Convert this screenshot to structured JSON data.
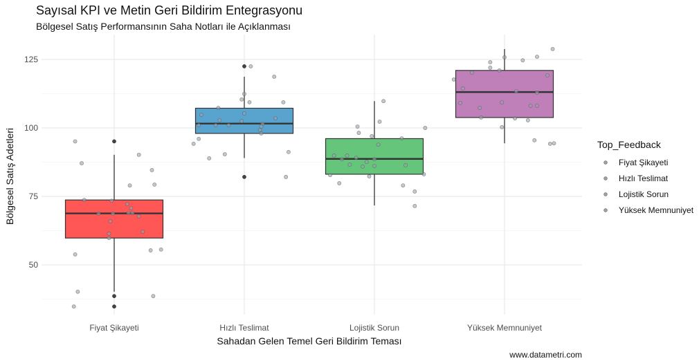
{
  "chart_data": {
    "type": "boxplot",
    "title": "Sayısal KPI ve Metin Geri Bildirim Entegrasyonu",
    "subtitle": "Bölgesel Satış Performansının Saha Notları ile Açıklanması",
    "xlabel": "Sahadan Gelen Temel Geri Bildirim Teması",
    "ylabel": "Bölgesel Satış Adetleri",
    "caption": "www.datametri.com",
    "ylim": [
      30,
      133
    ],
    "yticks": [
      50,
      75,
      100,
      125
    ],
    "grid": true,
    "categories": [
      "Fiyat Şikayeti",
      "Hızlı Teslimat",
      "Lojistik Sorun",
      "Yüksek Memnuniyet"
    ],
    "colors": [
      "#FF4D4D",
      "#4F9FCC",
      "#5CC274",
      "#BC79B6"
    ],
    "point_color": "#9AA3AD",
    "legend": {
      "title": "Top_Feedback",
      "placement": "right",
      "items": [
        "Fiyat Şikayeti",
        "Hızlı Teslimat",
        "Lojistik Sorun",
        "Yüksek Memnuniyet"
      ]
    },
    "boxes": [
      {
        "q1": 59.8,
        "median": 68.8,
        "q3": 73.7,
        "whisker_low": 40.2,
        "whisker_high": 90.2,
        "outliers": [
          95.1,
          38.6,
          34.8
        ]
      },
      {
        "q1": 98.0,
        "median": 101.6,
        "q3": 107.2,
        "whisker_low": 89.0,
        "whisker_high": 118.7,
        "outliers": [
          122.5,
          82.1
        ]
      },
      {
        "q1": 83.1,
        "median": 88.7,
        "q3": 96.1,
        "whisker_low": 71.7,
        "whisker_high": 109.8,
        "outliers": []
      },
      {
        "q1": 103.8,
        "median": 113.1,
        "q3": 121.0,
        "whisker_low": 94.4,
        "whisker_high": 128.8,
        "outliers": []
      }
    ],
    "points": [
      [
        [
          -0.3,
          95.1
        ],
        [
          0.19,
          90.2
        ],
        [
          -0.25,
          87.1
        ],
        [
          0.29,
          84.6
        ],
        [
          0.12,
          79.0
        ],
        [
          0.31,
          79.3
        ],
        [
          -0.23,
          73.7
        ],
        [
          -0.02,
          73.4
        ],
        [
          0.1,
          72.2
        ],
        [
          0.13,
          70.7
        ],
        [
          -0.12,
          68.7
        ],
        [
          -0.01,
          68.7
        ],
        [
          0.11,
          68.9
        ],
        [
          0.14,
          68.9
        ],
        [
          0.19,
          67.7
        ],
        [
          -0.03,
          65.9
        ],
        [
          0.22,
          62.1
        ],
        [
          -0.04,
          61.4
        ],
        [
          -0.04,
          59.8
        ],
        [
          -0.3,
          53.8
        ],
        [
          0.28,
          55.3
        ],
        [
          0.36,
          55.6
        ],
        [
          -0.28,
          40.2
        ],
        [
          0.3,
          38.6
        ],
        [
          -0.31,
          34.8
        ]
      ],
      [
        [
          0.05,
          122.5
        ],
        [
          0.23,
          118.7
        ],
        [
          0.0,
          112.4
        ],
        [
          -0.02,
          110.4
        ],
        [
          0.04,
          109.4
        ],
        [
          0.3,
          109.4
        ],
        [
          -0.2,
          107.3
        ],
        [
          -0.33,
          104.8
        ],
        [
          0.0,
          105.3
        ],
        [
          -0.19,
          102.8
        ],
        [
          0.24,
          103.5
        ],
        [
          -0.02,
          102.5
        ],
        [
          -0.35,
          101.0
        ],
        [
          -0.22,
          101.0
        ],
        [
          -0.12,
          101.0
        ],
        [
          0.14,
          101.5
        ],
        [
          0.13,
          100.5
        ],
        [
          0.12,
          99.2
        ],
        [
          0.13,
          98.0
        ],
        [
          -0.35,
          96.0
        ],
        [
          -0.39,
          94.2
        ],
        [
          -0.15,
          90.4
        ],
        [
          -0.27,
          88.9
        ],
        [
          0.34,
          91.2
        ],
        [
          0.32,
          82.1
        ]
      ],
      [
        [
          0.07,
          109.8
        ],
        [
          0.04,
          102.3
        ],
        [
          -0.13,
          100.5
        ],
        [
          0.39,
          100.0
        ],
        [
          -0.12,
          98.2
        ],
        [
          -0.02,
          97.0
        ],
        [
          0.21,
          96.2
        ],
        [
          0.03,
          93.9
        ],
        [
          -0.31,
          89.9
        ],
        [
          -0.21,
          89.9
        ],
        [
          -0.25,
          88.6
        ],
        [
          -0.14,
          89.1
        ],
        [
          0.0,
          88.6
        ],
        [
          -0.06,
          87.6
        ],
        [
          -0.19,
          86.6
        ],
        [
          -0.09,
          85.9
        ],
        [
          0.0,
          86.1
        ],
        [
          0.24,
          86.4
        ],
        [
          -0.34,
          82.8
        ],
        [
          -0.04,
          82.3
        ],
        [
          0.38,
          83.1
        ],
        [
          -0.27,
          79.8
        ],
        [
          0.22,
          79.0
        ],
        [
          0.31,
          76.8
        ],
        [
          0.31,
          71.5
        ]
      ],
      [
        [
          0.37,
          128.8
        ],
        [
          0.0,
          125.8
        ],
        [
          0.14,
          124.7
        ],
        [
          0.25,
          126.0
        ],
        [
          -0.11,
          124.0
        ],
        [
          -0.11,
          122.0
        ],
        [
          -0.04,
          121.0
        ],
        [
          -0.25,
          120.2
        ],
        [
          -0.39,
          117.7
        ],
        [
          0.33,
          119.2
        ],
        [
          -0.32,
          114.4
        ],
        [
          0.09,
          113.4
        ],
        [
          0.25,
          112.9
        ],
        [
          -0.34,
          109.1
        ],
        [
          -0.02,
          109.3
        ],
        [
          -0.19,
          107.3
        ],
        [
          0.2,
          108.1
        ],
        [
          0.25,
          108.1
        ],
        [
          -0.18,
          103.8
        ],
        [
          0.08,
          103.5
        ],
        [
          0.18,
          102.8
        ],
        [
          -0.02,
          100.3
        ],
        [
          0.23,
          95.5
        ],
        [
          0.35,
          94.2
        ],
        [
          0.38,
          94.4
        ]
      ]
    ]
  }
}
